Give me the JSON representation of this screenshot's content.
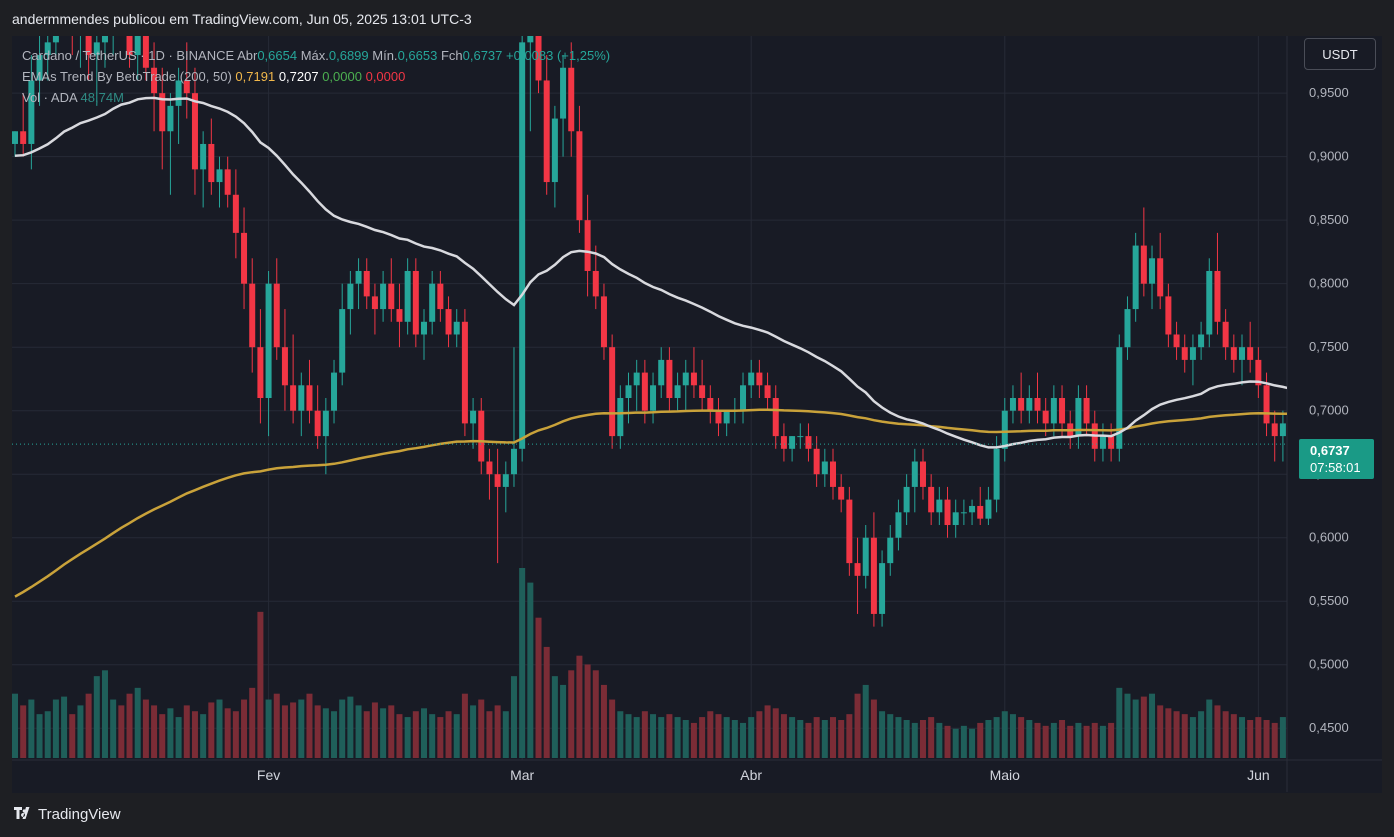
{
  "header": {
    "publisher": "andermmendes publicou em TradingView.com, Jun 05, 2025 13:01 UTC-3"
  },
  "legend": {
    "symbol": "Cardano / TetherUS · 1D · BINANCE",
    "open_label": "Abr",
    "open": "0,6654",
    "high_label": "Máx.",
    "high": "0,6899",
    "low_label": "Mín.",
    "low": "0,6653",
    "close_label": "Fch",
    "close": "0,6737",
    "change": "+0,0083 (+1,25%)",
    "ema_name": "EMAs Trend By BetoTrade (200, 50)",
    "ema200": "0,7191",
    "ema50": "0,7207",
    "ema_v3": "0,0000",
    "ema_v4": "0,0000",
    "vol_label": "Vol · ADA",
    "vol_value": "48,74M"
  },
  "currency_button": "USDT",
  "price_tag": {
    "price": "0,6737",
    "countdown": "07:58:01"
  },
  "footer": {
    "logo_text": "TradingView",
    "logo_icon": "tradingview-logo-icon"
  },
  "colors": {
    "up": "#26a69a",
    "down": "#f23645",
    "ema200": "#c9a23a",
    "ema50": "#d8d9de",
    "background": "#181b25",
    "vol_up": "#1f5f5a",
    "vol_down": "#7b2c36"
  },
  "chart_data": {
    "type": "candlestick",
    "y_axis": {
      "ticks": [
        "0,9500",
        "0,9000",
        "0,8500",
        "0,8000",
        "0,7500",
        "0,7000",
        "0,6500",
        "0,6000",
        "0,5500",
        "0,5000",
        "0,4500"
      ],
      "tick_values": [
        0.95,
        0.9,
        0.85,
        0.8,
        0.75,
        0.7,
        0.65,
        0.6,
        0.55,
        0.5,
        0.45
      ],
      "range": [
        0.425,
        0.995
      ]
    },
    "x_axis": {
      "labels": [
        "Fev",
        "Mar",
        "Abr",
        "Maio",
        "Jun"
      ],
      "label_day_index": [
        31,
        62,
        90,
        121,
        152
      ],
      "first_date": "2025-01-01",
      "last_date": "2025-06-05"
    },
    "candles": [
      [
        0.91,
        0.92,
        0.9,
        0.92
      ],
      [
        0.92,
        0.95,
        0.9,
        0.91
      ],
      [
        0.91,
        0.98,
        0.89,
        0.96
      ],
      [
        0.96,
        1.0,
        0.94,
        0.98
      ],
      [
        0.98,
        1.02,
        0.96,
        0.99
      ],
      [
        0.99,
        1.05,
        0.98,
        1.03
      ],
      [
        1.03,
        1.1,
        1.01,
        1.05
      ],
      [
        1.05,
        1.08,
        0.98,
        1.0
      ],
      [
        1.0,
        1.03,
        0.97,
        1.01
      ],
      [
        1.01,
        1.04,
        0.96,
        0.98
      ],
      [
        0.98,
        1.0,
        0.94,
        0.99
      ],
      [
        0.99,
        1.02,
        0.97,
        1.0
      ],
      [
        1.0,
        1.06,
        0.98,
        1.04
      ],
      [
        1.04,
        1.08,
        1.0,
        1.02
      ],
      [
        1.02,
        1.05,
        0.97,
        0.98
      ],
      [
        0.98,
        1.02,
        0.96,
        1.01
      ],
      [
        1.01,
        1.03,
        0.96,
        0.97
      ],
      [
        0.97,
        0.99,
        0.92,
        0.95
      ],
      [
        0.95,
        0.97,
        0.89,
        0.92
      ],
      [
        0.92,
        0.95,
        0.87,
        0.94
      ],
      [
        0.94,
        0.97,
        0.91,
        0.96
      ],
      [
        0.96,
        0.99,
        0.93,
        0.95
      ],
      [
        0.95,
        0.97,
        0.87,
        0.89
      ],
      [
        0.89,
        0.92,
        0.86,
        0.91
      ],
      [
        0.91,
        0.93,
        0.87,
        0.88
      ],
      [
        0.88,
        0.9,
        0.86,
        0.89
      ],
      [
        0.89,
        0.9,
        0.86,
        0.87
      ],
      [
        0.87,
        0.89,
        0.82,
        0.84
      ],
      [
        0.84,
        0.86,
        0.78,
        0.8
      ],
      [
        0.8,
        0.82,
        0.73,
        0.75
      ],
      [
        0.75,
        0.78,
        0.69,
        0.71
      ],
      [
        0.71,
        0.81,
        0.68,
        0.8
      ],
      [
        0.8,
        0.82,
        0.74,
        0.75
      ],
      [
        0.75,
        0.78,
        0.7,
        0.72
      ],
      [
        0.72,
        0.76,
        0.69,
        0.7
      ],
      [
        0.7,
        0.73,
        0.68,
        0.72
      ],
      [
        0.72,
        0.74,
        0.69,
        0.7
      ],
      [
        0.7,
        0.72,
        0.67,
        0.68
      ],
      [
        0.68,
        0.71,
        0.65,
        0.7
      ],
      [
        0.7,
        0.74,
        0.69,
        0.73
      ],
      [
        0.73,
        0.8,
        0.72,
        0.78
      ],
      [
        0.78,
        0.81,
        0.76,
        0.8
      ],
      [
        0.8,
        0.82,
        0.78,
        0.81
      ],
      [
        0.81,
        0.82,
        0.78,
        0.79
      ],
      [
        0.79,
        0.8,
        0.76,
        0.78
      ],
      [
        0.78,
        0.81,
        0.77,
        0.8
      ],
      [
        0.8,
        0.82,
        0.77,
        0.78
      ],
      [
        0.78,
        0.8,
        0.75,
        0.77
      ],
      [
        0.77,
        0.82,
        0.76,
        0.81
      ],
      [
        0.81,
        0.82,
        0.75,
        0.76
      ],
      [
        0.76,
        0.78,
        0.74,
        0.77
      ],
      [
        0.77,
        0.81,
        0.76,
        0.8
      ],
      [
        0.8,
        0.81,
        0.77,
        0.78
      ],
      [
        0.78,
        0.79,
        0.75,
        0.76
      ],
      [
        0.76,
        0.78,
        0.75,
        0.77
      ],
      [
        0.77,
        0.78,
        0.68,
        0.69
      ],
      [
        0.69,
        0.71,
        0.67,
        0.7
      ],
      [
        0.7,
        0.71,
        0.65,
        0.66
      ],
      [
        0.66,
        0.67,
        0.63,
        0.65
      ],
      [
        0.65,
        0.67,
        0.58,
        0.64
      ],
      [
        0.64,
        0.66,
        0.62,
        0.65
      ],
      [
        0.65,
        0.75,
        0.64,
        0.67
      ],
      [
        0.67,
        1.02,
        0.66,
        0.99
      ],
      [
        0.99,
        1.08,
        0.92,
        1.04
      ],
      [
        1.04,
        1.07,
        0.95,
        0.96
      ],
      [
        0.96,
        0.98,
        0.87,
        0.88
      ],
      [
        0.88,
        0.94,
        0.86,
        0.93
      ],
      [
        0.93,
        0.98,
        0.9,
        0.97
      ],
      [
        0.97,
        0.99,
        0.9,
        0.92
      ],
      [
        0.92,
        0.94,
        0.84,
        0.85
      ],
      [
        0.85,
        0.87,
        0.79,
        0.81
      ],
      [
        0.81,
        0.83,
        0.78,
        0.79
      ],
      [
        0.79,
        0.8,
        0.74,
        0.75
      ],
      [
        0.75,
        0.76,
        0.67,
        0.68
      ],
      [
        0.68,
        0.72,
        0.67,
        0.71
      ],
      [
        0.71,
        0.73,
        0.69,
        0.72
      ],
      [
        0.72,
        0.74,
        0.7,
        0.73
      ],
      [
        0.73,
        0.74,
        0.69,
        0.7
      ],
      [
        0.7,
        0.73,
        0.69,
        0.72
      ],
      [
        0.72,
        0.75,
        0.71,
        0.74
      ],
      [
        0.74,
        0.75,
        0.7,
        0.71
      ],
      [
        0.71,
        0.73,
        0.7,
        0.72
      ],
      [
        0.72,
        0.74,
        0.7,
        0.73
      ],
      [
        0.73,
        0.75,
        0.71,
        0.72
      ],
      [
        0.72,
        0.74,
        0.7,
        0.71
      ],
      [
        0.71,
        0.72,
        0.69,
        0.7
      ],
      [
        0.7,
        0.71,
        0.68,
        0.69
      ],
      [
        0.69,
        0.7,
        0.68,
        0.7
      ],
      [
        0.7,
        0.71,
        0.69,
        0.7
      ],
      [
        0.7,
        0.73,
        0.69,
        0.72
      ],
      [
        0.72,
        0.74,
        0.71,
        0.73
      ],
      [
        0.73,
        0.74,
        0.71,
        0.72
      ],
      [
        0.72,
        0.73,
        0.7,
        0.71
      ],
      [
        0.71,
        0.72,
        0.67,
        0.68
      ],
      [
        0.68,
        0.69,
        0.66,
        0.67
      ],
      [
        0.67,
        0.68,
        0.66,
        0.68
      ],
      [
        0.68,
        0.69,
        0.67,
        0.68
      ],
      [
        0.68,
        0.69,
        0.66,
        0.67
      ],
      [
        0.67,
        0.68,
        0.64,
        0.65
      ],
      [
        0.65,
        0.67,
        0.64,
        0.66
      ],
      [
        0.66,
        0.67,
        0.63,
        0.64
      ],
      [
        0.64,
        0.65,
        0.62,
        0.63
      ],
      [
        0.63,
        0.64,
        0.57,
        0.58
      ],
      [
        0.58,
        0.6,
        0.54,
        0.57
      ],
      [
        0.57,
        0.61,
        0.56,
        0.6
      ],
      [
        0.6,
        0.62,
        0.53,
        0.54
      ],
      [
        0.54,
        0.59,
        0.53,
        0.58
      ],
      [
        0.58,
        0.61,
        0.57,
        0.6
      ],
      [
        0.6,
        0.63,
        0.59,
        0.62
      ],
      [
        0.62,
        0.65,
        0.61,
        0.64
      ],
      [
        0.64,
        0.67,
        0.62,
        0.66
      ],
      [
        0.66,
        0.67,
        0.63,
        0.64
      ],
      [
        0.64,
        0.65,
        0.61,
        0.62
      ],
      [
        0.62,
        0.64,
        0.61,
        0.63
      ],
      [
        0.63,
        0.64,
        0.6,
        0.61
      ],
      [
        0.61,
        0.63,
        0.6,
        0.62
      ],
      [
        0.62,
        0.63,
        0.61,
        0.62
      ],
      [
        0.62,
        0.63,
        0.61,
        0.625
      ],
      [
        0.625,
        0.64,
        0.61,
        0.615
      ],
      [
        0.615,
        0.64,
        0.61,
        0.63
      ],
      [
        0.63,
        0.68,
        0.62,
        0.67
      ],
      [
        0.67,
        0.71,
        0.66,
        0.7
      ],
      [
        0.7,
        0.72,
        0.69,
        0.71
      ],
      [
        0.71,
        0.73,
        0.69,
        0.7
      ],
      [
        0.7,
        0.72,
        0.69,
        0.71
      ],
      [
        0.71,
        0.73,
        0.69,
        0.7
      ],
      [
        0.7,
        0.71,
        0.68,
        0.69
      ],
      [
        0.69,
        0.72,
        0.68,
        0.71
      ],
      [
        0.71,
        0.72,
        0.68,
        0.69
      ],
      [
        0.69,
        0.7,
        0.67,
        0.68
      ],
      [
        0.68,
        0.72,
        0.67,
        0.71
      ],
      [
        0.71,
        0.72,
        0.68,
        0.69
      ],
      [
        0.69,
        0.7,
        0.66,
        0.67
      ],
      [
        0.67,
        0.69,
        0.66,
        0.68
      ],
      [
        0.68,
        0.69,
        0.66,
        0.67
      ],
      [
        0.67,
        0.76,
        0.66,
        0.75
      ],
      [
        0.75,
        0.79,
        0.74,
        0.78
      ],
      [
        0.78,
        0.84,
        0.77,
        0.83
      ],
      [
        0.83,
        0.86,
        0.79,
        0.8
      ],
      [
        0.8,
        0.83,
        0.78,
        0.82
      ],
      [
        0.82,
        0.84,
        0.78,
        0.79
      ],
      [
        0.79,
        0.8,
        0.75,
        0.76
      ],
      [
        0.76,
        0.77,
        0.74,
        0.75
      ],
      [
        0.75,
        0.76,
        0.73,
        0.74
      ],
      [
        0.74,
        0.76,
        0.72,
        0.75
      ],
      [
        0.75,
        0.77,
        0.74,
        0.76
      ],
      [
        0.76,
        0.82,
        0.75,
        0.81
      ],
      [
        0.81,
        0.84,
        0.76,
        0.77
      ],
      [
        0.77,
        0.78,
        0.74,
        0.75
      ],
      [
        0.75,
        0.76,
        0.73,
        0.74
      ],
      [
        0.74,
        0.76,
        0.72,
        0.75
      ],
      [
        0.75,
        0.77,
        0.73,
        0.74
      ],
      [
        0.74,
        0.75,
        0.71,
        0.72
      ],
      [
        0.72,
        0.73,
        0.68,
        0.69
      ],
      [
        0.69,
        0.7,
        0.66,
        0.68
      ],
      [
        0.68,
        0.7,
        0.66,
        0.69
      ],
      [
        0.69,
        0.7,
        0.67,
        0.68
      ],
      [
        0.68,
        0.69,
        0.66,
        0.665
      ],
      [
        0.6654,
        0.6899,
        0.6653,
        0.6737
      ]
    ],
    "volume": [
      0.22,
      0.18,
      0.2,
      0.15,
      0.16,
      0.2,
      0.21,
      0.15,
      0.18,
      0.22,
      0.28,
      0.3,
      0.2,
      0.18,
      0.22,
      0.24,
      0.2,
      0.18,
      0.15,
      0.17,
      0.14,
      0.18,
      0.16,
      0.15,
      0.19,
      0.2,
      0.17,
      0.16,
      0.2,
      0.24,
      0.5,
      0.2,
      0.22,
      0.18,
      0.19,
      0.2,
      0.22,
      0.18,
      0.17,
      0.16,
      0.2,
      0.21,
      0.18,
      0.16,
      0.19,
      0.17,
      0.18,
      0.15,
      0.14,
      0.16,
      0.17,
      0.15,
      0.14,
      0.16,
      0.15,
      0.22,
      0.18,
      0.2,
      0.16,
      0.18,
      0.16,
      0.28,
      0.65,
      0.6,
      0.48,
      0.38,
      0.28,
      0.25,
      0.3,
      0.35,
      0.32,
      0.3,
      0.25,
      0.2,
      0.16,
      0.15,
      0.14,
      0.16,
      0.15,
      0.14,
      0.15,
      0.14,
      0.13,
      0.12,
      0.14,
      0.16,
      0.15,
      0.14,
      0.13,
      0.12,
      0.14,
      0.16,
      0.18,
      0.17,
      0.15,
      0.14,
      0.13,
      0.12,
      0.14,
      0.13,
      0.14,
      0.13,
      0.15,
      0.22,
      0.25,
      0.2,
      0.16,
      0.15,
      0.14,
      0.13,
      0.12,
      0.13,
      0.14,
      0.12,
      0.11,
      0.1,
      0.11,
      0.1,
      0.12,
      0.13,
      0.14,
      0.16,
      0.15,
      0.14,
      0.13,
      0.12,
      0.11,
      0.12,
      0.13,
      0.11,
      0.12,
      0.11,
      0.12,
      0.11,
      0.12,
      0.24,
      0.22,
      0.2,
      0.21,
      0.22,
      0.18,
      0.17,
      0.16,
      0.15,
      0.14,
      0.16,
      0.2,
      0.18,
      0.16,
      0.15,
      0.14,
      0.13,
      0.14,
      0.13,
      0.12,
      0.14,
      0.12,
      0.1
    ]
  }
}
